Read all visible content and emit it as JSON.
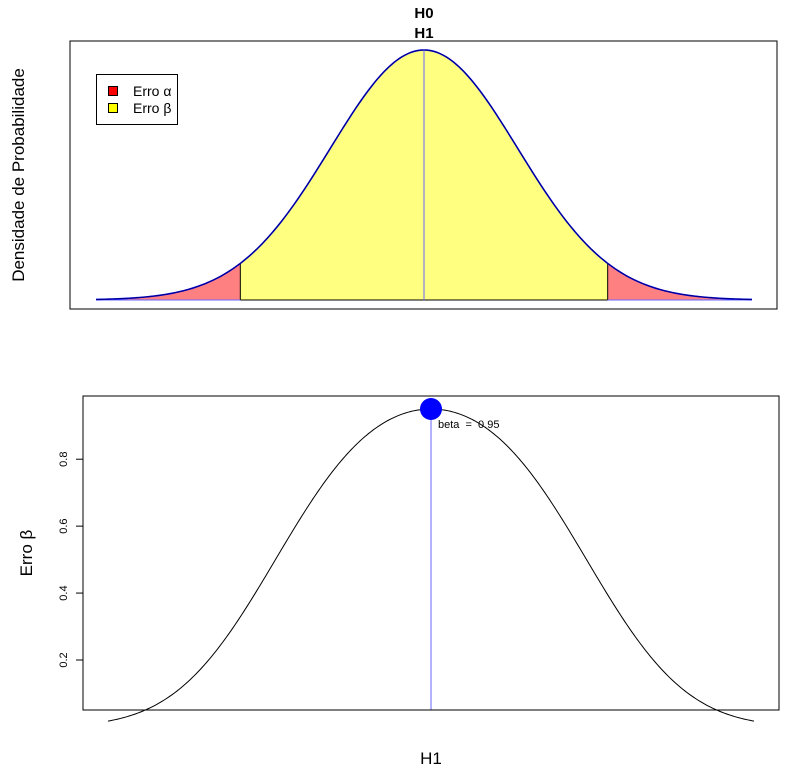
{
  "chart_data": [
    {
      "type": "area",
      "title_lines": [
        "H0",
        "H1"
      ],
      "ylabel": "Densidade de Probabilidade",
      "xlabel": "",
      "axes_ticks": false,
      "distribution": "normal",
      "x_range": [
        -3.5,
        3.5
      ],
      "alpha_cutoffs": [
        -1.96,
        1.96
      ],
      "h0_mean": 0,
      "h1_mean": 0,
      "regions": [
        {
          "name": "Erro α",
          "color": "#ff8080",
          "legend_color": "#ff0000",
          "span": "tails"
        },
        {
          "name": "Erro β",
          "color": "#ffff80",
          "legend_color": "#ffff00",
          "span": "center"
        }
      ],
      "legend": {
        "position": "top-left",
        "items": [
          {
            "label": "Erro α",
            "color": "#ff0000"
          },
          {
            "label": "Erro β",
            "color": "#ffff00"
          }
        ]
      },
      "curve_colors": {
        "h0": "#000080",
        "h1": "#0000ff",
        "reference_line": "#6666ff"
      }
    },
    {
      "type": "line",
      "xlabel": "H1",
      "ylabel": "Erro β",
      "x_range": [
        -4.07,
        4.07
      ],
      "ylim": [
        0.04,
        1.0
      ],
      "yticks": [
        0.2,
        0.4,
        0.6,
        0.8
      ],
      "x_ticks_shown": false,
      "curve": "power_beta",
      "critical_value": 1.96,
      "highlight_point": {
        "x": 0,
        "y": 0.95,
        "color": "#0000ff"
      },
      "annotation": "beta  =  0.95",
      "vertical_line": {
        "x": 0,
        "color": "#6666ff"
      }
    }
  ]
}
